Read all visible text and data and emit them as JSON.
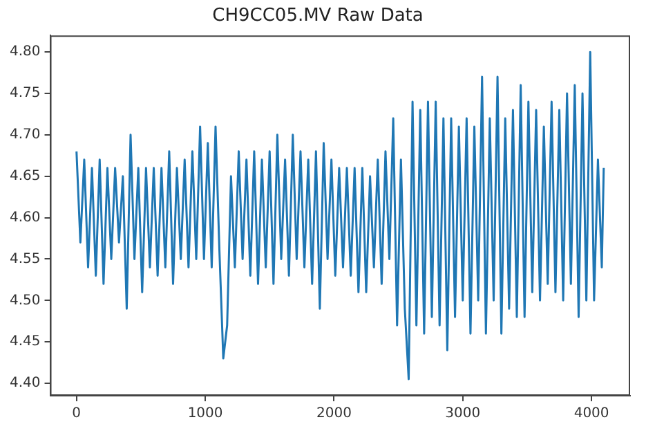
{
  "chart_data": {
    "type": "line",
    "title": "CH9CC05.MV Raw Data",
    "x": [
      0,
      30,
      60,
      90,
      120,
      150,
      180,
      210,
      240,
      270,
      300,
      330,
      360,
      390,
      420,
      450,
      480,
      510,
      540,
      570,
      600,
      630,
      660,
      690,
      720,
      750,
      780,
      810,
      840,
      870,
      900,
      930,
      960,
      990,
      1020,
      1050,
      1080,
      1110,
      1140,
      1170,
      1200,
      1230,
      1260,
      1290,
      1320,
      1350,
      1380,
      1410,
      1440,
      1470,
      1500,
      1530,
      1560,
      1590,
      1620,
      1650,
      1680,
      1710,
      1740,
      1770,
      1800,
      1830,
      1860,
      1890,
      1920,
      1950,
      1980,
      2010,
      2040,
      2070,
      2100,
      2130,
      2160,
      2190,
      2220,
      2250,
      2280,
      2310,
      2340,
      2370,
      2400,
      2430,
      2460,
      2490,
      2520,
      2550,
      2580,
      2610,
      2640,
      2670,
      2700,
      2730,
      2760,
      2790,
      2820,
      2850,
      2880,
      2910,
      2940,
      2970,
      3000,
      3030,
      3060,
      3090,
      3120,
      3150,
      3180,
      3210,
      3240,
      3270,
      3300,
      3330,
      3360,
      3390,
      3420,
      3450,
      3480,
      3510,
      3540,
      3570,
      3600,
      3630,
      3660,
      3690,
      3720,
      3750,
      3780,
      3810,
      3840,
      3870,
      3900,
      3930,
      3960,
      3990,
      4020,
      4050,
      4080,
      4095
    ],
    "series": [
      {
        "color": "#1f77b4",
        "values": [
          4.68,
          4.57,
          4.67,
          4.54,
          4.66,
          4.53,
          4.67,
          4.52,
          4.66,
          4.55,
          4.66,
          4.57,
          4.65,
          4.49,
          4.7,
          4.55,
          4.66,
          4.51,
          4.66,
          4.54,
          4.66,
          4.53,
          4.66,
          4.54,
          4.68,
          4.52,
          4.66,
          4.55,
          4.67,
          4.54,
          4.68,
          4.55,
          4.71,
          4.55,
          4.69,
          4.54,
          4.71,
          4.56,
          4.43,
          4.47,
          4.65,
          4.54,
          4.68,
          4.55,
          4.67,
          4.53,
          4.68,
          4.52,
          4.67,
          4.54,
          4.68,
          4.52,
          4.7,
          4.55,
          4.67,
          4.53,
          4.7,
          4.55,
          4.68,
          4.54,
          4.67,
          4.52,
          4.68,
          4.49,
          4.69,
          4.55,
          4.67,
          4.53,
          4.66,
          4.54,
          4.66,
          4.53,
          4.66,
          4.51,
          4.66,
          4.51,
          4.65,
          4.54,
          4.67,
          4.52,
          4.68,
          4.55,
          4.72,
          4.47,
          4.67,
          4.49,
          4.405,
          4.74,
          4.47,
          4.73,
          4.46,
          4.74,
          4.48,
          4.74,
          4.47,
          4.72,
          4.44,
          4.72,
          4.48,
          4.71,
          4.5,
          4.72,
          4.46,
          4.71,
          4.5,
          4.77,
          4.46,
          4.72,
          4.5,
          4.77,
          4.46,
          4.72,
          4.49,
          4.73,
          4.48,
          4.76,
          4.48,
          4.74,
          4.51,
          4.73,
          4.5,
          4.71,
          4.52,
          4.74,
          4.51,
          4.73,
          4.5,
          4.75,
          4.52,
          4.76,
          4.48,
          4.75,
          4.5,
          4.8,
          4.5,
          4.67,
          4.54,
          4.66
        ]
      }
    ],
    "xlim": [
      -205,
      4300
    ],
    "ylim": [
      4.385,
      4.82
    ],
    "xticks": [
      0,
      1000,
      2000,
      3000,
      4000
    ],
    "yticks": [
      {
        "value": 4.4,
        "label": "4.40"
      },
      {
        "value": 4.45,
        "label": "4.45"
      },
      {
        "value": 4.5,
        "label": "4.50"
      },
      {
        "value": 4.55,
        "label": "4.55"
      },
      {
        "value": 4.6,
        "label": "4.60"
      },
      {
        "value": 4.65,
        "label": "4.65"
      },
      {
        "value": 4.7,
        "label": "4.70"
      },
      {
        "value": 4.75,
        "label": "4.75"
      },
      {
        "value": 4.8,
        "label": "4.80"
      }
    ],
    "grid": false,
    "legend": false,
    "marker": "none",
    "line_style": "solid"
  }
}
